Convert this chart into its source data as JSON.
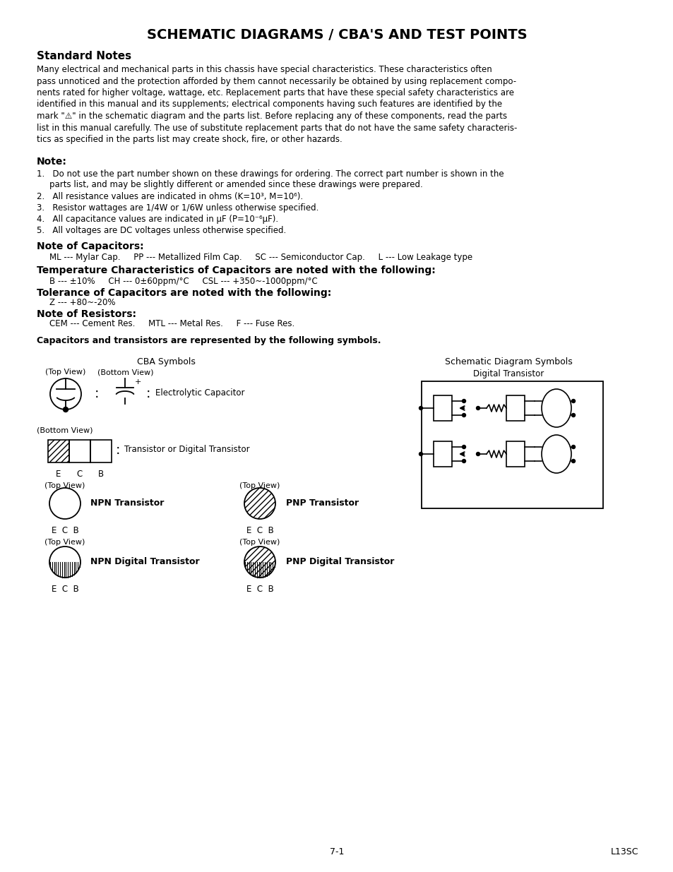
{
  "title": "SCHEMATIC DIAGRAMS / CBA'S AND TEST POINTS",
  "background_color": "#ffffff",
  "page_number": "7-1",
  "page_code": "L13SC",
  "standard_notes_heading": "Standard Notes",
  "standard_notes_body_lines": [
    "Many electrical and mechanical parts in this chassis have special characteristics. These characteristics often",
    "pass unnoticed and the protection afforded by them cannot necessarily be obtained by using replacement compo-",
    "nents rated for higher voltage, wattage, etc. Replacement parts that have these special safety characteristics are",
    "identified in this manual and its supplements; electrical components having such features are identified by the",
    "mark \"⚠\" in the schematic diagram and the parts list. Before replacing any of these components, read the parts",
    "list in this manual carefully. The use of substitute replacement parts that do not have the same safety characteris-",
    "tics as specified in the parts list may create shock, fire, or other hazards."
  ],
  "note_heading": "Note:",
  "note_item1_line1": "Do not use the part number shown on these drawings for ordering. The correct part number is shown in the",
  "note_item1_line2": "parts list, and may be slightly different or amended since these drawings were prepared.",
  "note_item2": "All resistance values are indicated in ohms (K=10³, M=10⁶).",
  "note_item3": "Resistor wattages are 1/4W or 1/6W unless otherwise specified.",
  "note_item4": "All capacitance values are indicated in μF (P=10⁻⁶μF).",
  "note_item5": "All voltages are DC voltages unless otherwise specified.",
  "cap_notes_heading": "Note of Capacitors:",
  "cap_notes_body": "ML --- Mylar Cap.     PP --- Metallized Film Cap.     SC --- Semiconductor Cap.     L --- Low Leakage type",
  "temp_heading": "Temperature Characteristics of Capacitors are noted with the following:",
  "temp_body": "B --- ±10%     CH --- 0±60ppm/°C     CSL --- +350~-1000ppm/°C",
  "tol_heading": "Tolerance of Capacitors are noted with the following:",
  "tol_body": "Z --- +80~-20%",
  "res_heading": "Note of Resistors:",
  "res_body": "CEM --- Cement Res.     MTL --- Metal Res.     F --- Fuse Res.",
  "cap_trans_note": "Capacitors and transistors are represented by the following symbols.",
  "cba_symbols_label": "CBA Symbols",
  "schematic_label": "Schematic Diagram Symbols",
  "digital_transistor_label": "Digital Transistor",
  "top_view": "(Top View)",
  "bottom_view": "(Bottom View)",
  "electrolytic_cap_label": "Electrolytic Capacitor",
  "transistor_label": "Transistor or Digital Transistor",
  "npn_label": "NPN Transistor",
  "pnp_label": "PNP Transistor",
  "npn_digital_label": "NPN Digital Transistor",
  "pnp_digital_label": "PNP Digital Transistor",
  "ecb": "E  C  B"
}
